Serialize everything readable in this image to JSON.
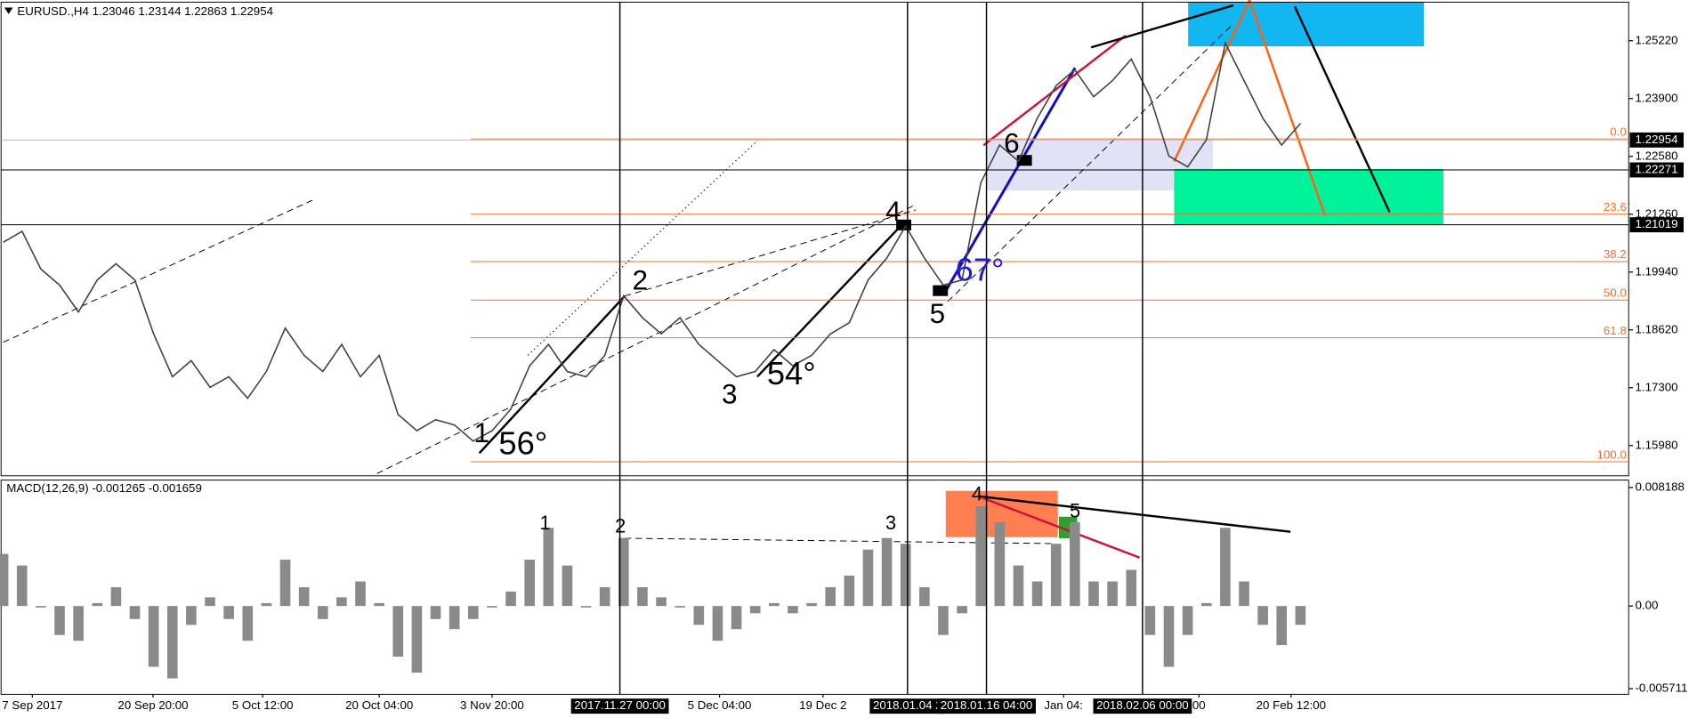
{
  "chart_data": [
    {
      "type": "line",
      "title": "EURUSD.,H4  1.23046 1.23144 1.22863 1.22954",
      "x": [
        0,
        1,
        2,
        3,
        4,
        5,
        6,
        7,
        8,
        9,
        10,
        11,
        12,
        13,
        14,
        15,
        16,
        17,
        18,
        19,
        20,
        21,
        22,
        23,
        24,
        25,
        26,
        27,
        28,
        29,
        30,
        31,
        32,
        33,
        34,
        35,
        36,
        37,
        38,
        39,
        40,
        41,
        42,
        43,
        44,
        45,
        46,
        47,
        48,
        49,
        50,
        51,
        52,
        53,
        54,
        55,
        56,
        57,
        58,
        59,
        60,
        61,
        62,
        63,
        64,
        65,
        66,
        67,
        68,
        69
      ],
      "values": [
        1.2062,
        1.2087,
        1.2001,
        1.1964,
        1.1903,
        1.1976,
        1.2013,
        1.1976,
        1.1853,
        1.1755,
        1.1792,
        1.1731,
        1.1755,
        1.1706,
        1.1767,
        1.1866,
        1.1804,
        1.1767,
        1.1829,
        1.1755,
        1.1804,
        1.1669,
        1.1632,
        1.1657,
        1.1645,
        1.1608,
        1.1632,
        1.1681,
        1.178,
        1.1829,
        1.1767,
        1.1755,
        1.1804,
        1.194,
        1.189,
        1.1853,
        1.189,
        1.1829,
        1.1792,
        1.1755,
        1.1767,
        1.1817,
        1.178,
        1.1804,
        1.1853,
        1.1878,
        1.1976,
        1.2026,
        1.2099,
        1.2026,
        1.1964,
        1.1976,
        1.2198,
        1.2284,
        1.2247,
        1.2345,
        1.2419,
        1.2456,
        1.2394,
        1.2431,
        1.248,
        1.2394,
        1.2259,
        1.2234,
        1.2296,
        1.2517,
        1.2431,
        1.2345,
        1.2284,
        1.2333
      ],
      "color": "#404040",
      "xlim": [
        0,
        86
      ],
      "xticks": [
        {
          "value": 1.55,
          "label": "7 Sep 2017"
        },
        {
          "value": 7.97,
          "label": "20 Sep 20:00"
        },
        {
          "value": 13.8,
          "label": "5 Oct 12:00"
        },
        {
          "value": 20.0,
          "label": "20 Oct 04:00"
        },
        {
          "value": 26.0,
          "label": "3 Nov 20:00"
        },
        {
          "value": 38.1,
          "label": "5 Dec 04:00"
        },
        {
          "value": 43.6,
          "label": "19 Dec 2"
        },
        {
          "value": 56.4,
          "label": "Jan 04:"
        },
        {
          "value": 63.6,
          "label": "00"
        },
        {
          "value": 68.5,
          "label": "20 Feb 12:00"
        }
      ],
      "ylim": [
        1.1529,
        1.261
      ],
      "yticks": [
        {
          "value": 1.2522,
          "label": "1.25220"
        },
        {
          "value": 1.239,
          "label": "1.23900"
        },
        {
          "value": 1.2258,
          "label": "1.22580"
        },
        {
          "value": 1.2126,
          "label": "1.21260"
        },
        {
          "value": 1.1994,
          "label": "1.19940"
        },
        {
          "value": 1.1862,
          "label": "1.18620"
        },
        {
          "value": 1.173,
          "label": "1.17300"
        },
        {
          "value": 1.1598,
          "label": "1.15980"
        }
      ],
      "price_lines": [
        1.22954,
        1.22271,
        1.21019
      ],
      "fib_levels": [
        {
          "value": 1.2298,
          "label": "0.0"
        },
        {
          "value": 1.2126,
          "label": "23.6"
        },
        {
          "value": 1.2018,
          "label": "38.2"
        },
        {
          "value": 1.193,
          "label": "50.0"
        },
        {
          "value": 1.1844,
          "label": "61.8"
        },
        {
          "value": 1.1561,
          "label": "100.0"
        }
      ],
      "time_markers": [
        {
          "value": 32.8,
          "label": "2017.11.27 00:00"
        },
        {
          "value": 48.1,
          "label": "2018.01.04 2"
        },
        {
          "value": 52.3,
          "label": "2018.01.16 04:00"
        },
        {
          "value": 60.6,
          "label": "2018.02.06 00:00"
        }
      ],
      "annotations": [
        "1",
        "56°",
        "2",
        "3",
        "54°",
        "4",
        "5",
        "6",
        "67°"
      ]
    },
    {
      "type": "bar",
      "title": "MACD(12,26,9) -0.001265 -0.001659",
      "values": [
        0.0036,
        0.0028,
        -0.0001,
        -0.002,
        -0.0024,
        0.0002,
        0.0013,
        -0.0009,
        -0.0042,
        -0.005,
        -0.0013,
        0.0006,
        -0.0009,
        -0.0024,
        0.0002,
        0.0032,
        0.0013,
        -0.0009,
        0.0006,
        0.0017,
        0.0002,
        -0.0035,
        -0.0046,
        -0.0009,
        -0.0016,
        -0.0009,
        -0.0001,
        0.001,
        0.0032,
        0.0054,
        0.0028,
        -0.0001,
        0.0013,
        0.0047,
        0.0013,
        0.0006,
        -0.0001,
        -0.0013,
        -0.0024,
        -0.0016,
        -0.0005,
        0.0002,
        -0.0005,
        0.0002,
        0.0013,
        0.0021,
        0.0039,
        0.0047,
        0.0043,
        0.0013,
        -0.002,
        -0.0005,
        0.0069,
        0.0058,
        0.0028,
        0.0017,
        0.0043,
        0.0058,
        0.0017,
        0.0017,
        0.0025,
        -0.002,
        -0.0042,
        -0.002,
        0.0002,
        0.0054,
        0.0017,
        -0.0013,
        -0.0027,
        -0.0013
      ],
      "color": "#8a8a8a",
      "ylim": [
        -0.0061,
        0.0087
      ],
      "yticks": [
        0.008188,
        {
          "value": 0,
          "label": "0.00"
        },
        -0.005711
      ],
      "annotations": [
        "1",
        "2",
        "3",
        "4",
        "5"
      ]
    }
  ]
}
